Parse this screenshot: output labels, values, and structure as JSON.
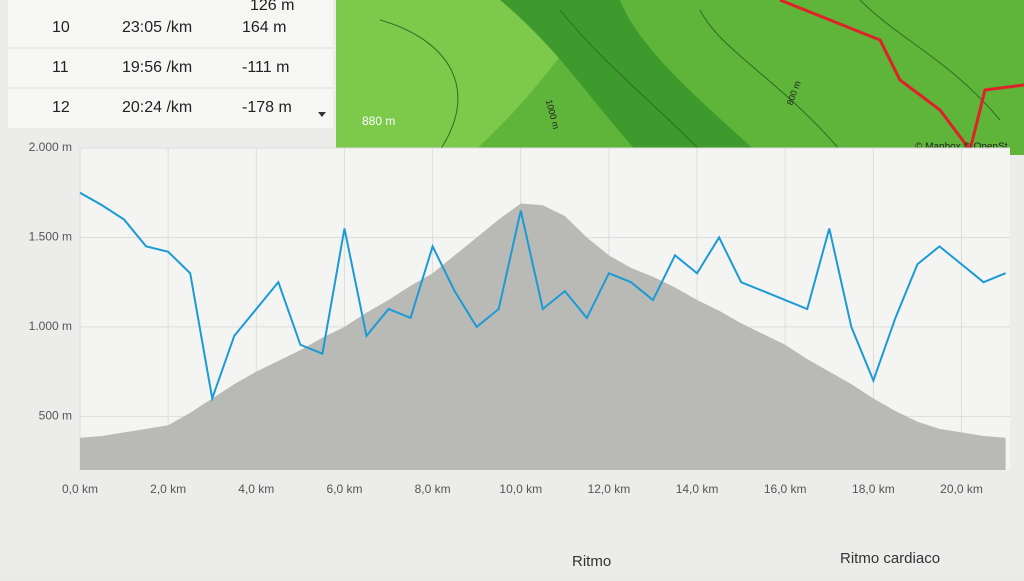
{
  "table": {
    "partial": "126 m",
    "rows": [
      [
        "10",
        "23:05 /km",
        "164 m"
      ],
      [
        "11",
        "19:56 /km",
        "-111 m"
      ],
      [
        "12",
        "20:24 /km",
        "-178 m"
      ]
    ]
  },
  "map": {
    "labels": [
      "880 m",
      "1000 m",
      "800 m"
    ],
    "attribution": "© Mapbox © OpenSt"
  },
  "chart_data": {
    "type": "line",
    "x": [
      0,
      0.5,
      1,
      1.5,
      2,
      2.5,
      3,
      3.5,
      4,
      4.5,
      5,
      5.5,
      6,
      6.5,
      7,
      7.5,
      8,
      8.5,
      9,
      9.5,
      10,
      10.5,
      11,
      11.5,
      12,
      12.5,
      13,
      13.5,
      14,
      14.5,
      15,
      15.5,
      16,
      16.5,
      17,
      17.5,
      18,
      18.5,
      19,
      19.5,
      20,
      20.5,
      21
    ],
    "series": [
      {
        "type": "area",
        "color": "#b9b9b6",
        "values": [
          380,
          390,
          410,
          430,
          450,
          520,
          600,
          680,
          750,
          810,
          870,
          940,
          1000,
          1080,
          1150,
          1230,
          1300,
          1400,
          1500,
          1600,
          1690,
          1680,
          1620,
          1500,
          1400,
          1330,
          1280,
          1220,
          1150,
          1090,
          1020,
          960,
          900,
          820,
          750,
          680,
          600,
          530,
          470,
          430,
          410,
          390,
          380
        ]
      },
      {
        "name": "Ritmo",
        "type": "line",
        "color": "#1b9bd6",
        "values": [
          1750,
          1680,
          1600,
          1450,
          1420,
          1300,
          600,
          950,
          1100,
          1250,
          900,
          850,
          1550,
          950,
          1100,
          1050,
          1450,
          1200,
          1000,
          1100,
          1650,
          1100,
          1200,
          1050,
          1300,
          1250,
          1150,
          1400,
          1300,
          1500,
          1250,
          1200,
          1150,
          1100,
          1550,
          1000,
          700,
          1050,
          1350,
          1450,
          1350,
          1250,
          1300
        ]
      }
    ],
    "legend_extra": "Ritmo cardiaco",
    "xlim": [
      0,
      21.1
    ],
    "ylim": [
      200,
      2000
    ],
    "xticks": [
      {
        "value": 0,
        "label": "0,0 km"
      },
      {
        "value": 2,
        "label": "2,0 km"
      },
      {
        "value": 4,
        "label": "4,0 km"
      },
      {
        "value": 6,
        "label": "6,0 km"
      },
      {
        "value": 8,
        "label": "8,0 km"
      },
      {
        "value": 10,
        "label": "10,0 km"
      },
      {
        "value": 12,
        "label": "12,0 km"
      },
      {
        "value": 14,
        "label": "14,0 km"
      },
      {
        "value": 16,
        "label": "16,0 km"
      },
      {
        "value": 18,
        "label": "18,0 km"
      },
      {
        "value": 20,
        "label": "20,0 km"
      }
    ],
    "yticks": [
      {
        "value": 500,
        "label": "500 m"
      },
      {
        "value": 1000,
        "label": "1.000 m"
      },
      {
        "value": 1500,
        "label": "1.500 m"
      },
      {
        "value": 2000,
        "label": "2.000 m"
      }
    ],
    "grid": true
  }
}
